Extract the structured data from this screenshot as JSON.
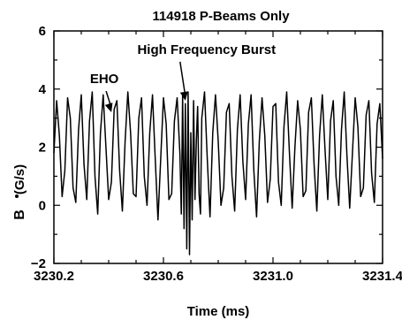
{
  "chart_data": {
    "type": "line",
    "title": "114918 P-Beams Only",
    "xlabel": "Time (ms)",
    "ylabel": "(G/s)",
    "ylabel_symbol": "B",
    "xlim": [
      3230.2,
      3231.4
    ],
    "ylim": [
      -2,
      6
    ],
    "xticks": [
      "3230.2",
      "3230.6",
      "3231.0",
      "3231.4"
    ],
    "xtick_values": [
      3230.2,
      3230.6,
      3231.0,
      3231.4
    ],
    "yticks": [
      "−2",
      "0",
      "2",
      "4",
      "6"
    ],
    "ytick_values": [
      -2,
      0,
      2,
      4,
      6
    ],
    "grid": false,
    "annotations": [
      {
        "text": "EHO",
        "target_x": 3230.41,
        "target_y": 3.2
      },
      {
        "text": "High Frequency Burst",
        "target_x": 3230.68,
        "target_y": 3.6
      }
    ],
    "series": [
      {
        "color": "#000000",
        "x": [
          3230.2,
          3230.21,
          3230.22,
          3230.23,
          3230.24,
          3230.25,
          3230.26,
          3230.27,
          3230.28,
          3230.29,
          3230.3,
          3230.31,
          3230.32,
          3230.33,
          3230.34,
          3230.35,
          3230.36,
          3230.37,
          3230.38,
          3230.39,
          3230.4,
          3230.41,
          3230.42,
          3230.43,
          3230.44,
          3230.45,
          3230.46,
          3230.47,
          3230.48,
          3230.49,
          3230.5,
          3230.51,
          3230.52,
          3230.53,
          3230.54,
          3230.55,
          3230.56,
          3230.57,
          3230.58,
          3230.59,
          3230.6,
          3230.61,
          3230.62,
          3230.63,
          3230.64,
          3230.65,
          3230.66,
          3230.665,
          3230.67,
          3230.675,
          3230.68,
          3230.685,
          3230.69,
          3230.695,
          3230.7,
          3230.705,
          3230.71,
          3230.715,
          3230.72,
          3230.725,
          3230.73,
          3230.735,
          3230.74,
          3230.75,
          3230.76,
          3230.77,
          3230.78,
          3230.79,
          3230.8,
          3230.81,
          3230.82,
          3230.83,
          3230.84,
          3230.85,
          3230.86,
          3230.87,
          3230.88,
          3230.89,
          3230.9,
          3230.91,
          3230.92,
          3230.93,
          3230.94,
          3230.95,
          3230.96,
          3230.97,
          3230.98,
          3230.99,
          3231.0,
          3231.01,
          3231.02,
          3231.03,
          3231.04,
          3231.05,
          3231.06,
          3231.07,
          3231.08,
          3231.09,
          3231.1,
          3231.11,
          3231.12,
          3231.13,
          3231.14,
          3231.15,
          3231.16,
          3231.17,
          3231.18,
          3231.19,
          3231.2,
          3231.21,
          3231.22,
          3231.23,
          3231.24,
          3231.25,
          3231.26,
          3231.27,
          3231.28,
          3231.29,
          3231.3,
          3231.31,
          3231.32,
          3231.33,
          3231.34,
          3231.35,
          3231.36,
          3231.37,
          3231.38,
          3231.39,
          3231.4
        ],
        "y": [
          1.8,
          3.6,
          2.4,
          0.3,
          1.2,
          3.7,
          3.0,
          0.6,
          0.1,
          2.6,
          3.8,
          1.4,
          0.2,
          2.9,
          3.9,
          1.0,
          -0.3,
          2.5,
          3.8,
          2.0,
          0.2,
          0.8,
          3.3,
          3.6,
          1.2,
          -0.2,
          2.2,
          3.9,
          2.5,
          0.4,
          0.3,
          3.0,
          3.7,
          1.0,
          0.0,
          2.5,
          3.8,
          1.6,
          -0.5,
          1.6,
          3.7,
          2.8,
          0.2,
          0.4,
          2.9,
          3.7,
          1.8,
          -0.3,
          3.8,
          -0.8,
          3.5,
          -1.5,
          3.9,
          -1.7,
          2.5,
          -0.5,
          3.6,
          0.2,
          2.2,
          3.4,
          0.4,
          -0.3,
          3.0,
          3.9,
          1.6,
          -0.4,
          2.5,
          3.8,
          2.2,
          0.0,
          0.6,
          3.2,
          3.5,
          1.0,
          -0.2,
          2.6,
          3.8,
          1.5,
          0.2,
          2.8,
          3.8,
          1.2,
          -0.4,
          2.2,
          3.7,
          2.4,
          0.1,
          0.9,
          3.4,
          3.5,
          0.8,
          0.0,
          2.7,
          3.9,
          1.8,
          -0.1,
          2.0,
          3.6,
          2.6,
          0.3,
          0.5,
          3.2,
          3.7,
          1.4,
          -0.2,
          2.4,
          3.8,
          1.9,
          0.2,
          2.9,
          3.6,
          1.0,
          0.0,
          2.6,
          3.9,
          1.7,
          -0.1,
          1.8,
          3.7,
          2.7,
          0.3,
          0.6,
          3.1,
          3.6,
          1.1,
          0.1,
          2.8,
          3.5,
          1.6
        ]
      }
    ]
  }
}
